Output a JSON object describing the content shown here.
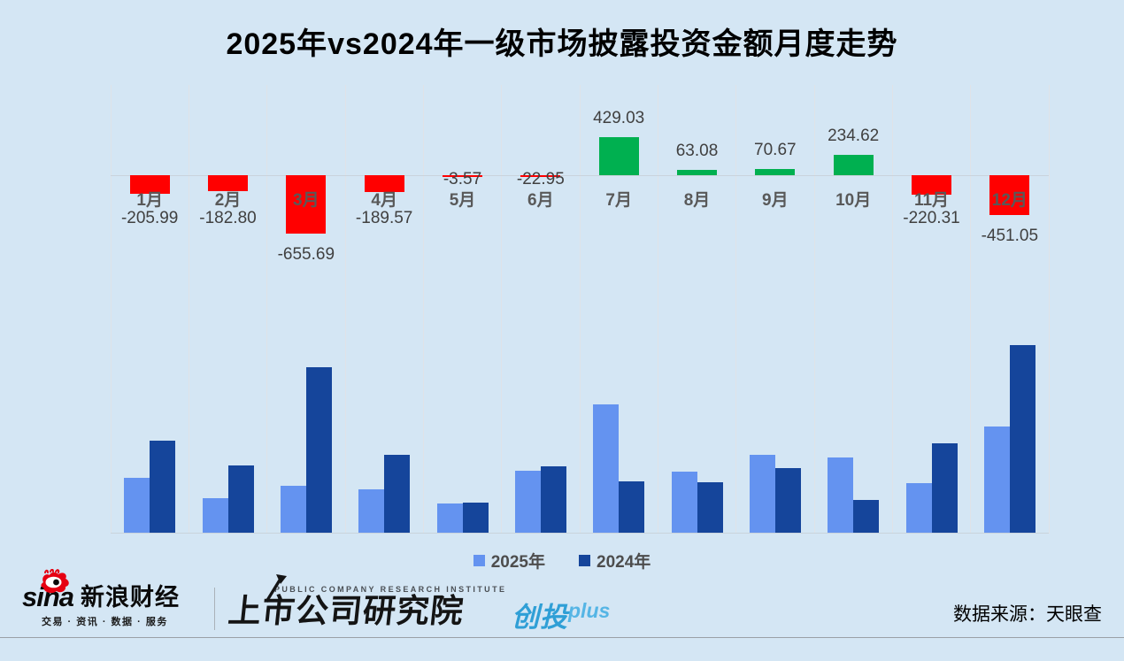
{
  "title": "2025年vs2024年一级市场披露投资金额月度走势",
  "chart_data": {
    "type": "bar",
    "title": "2025年vs2024年一级市场披露投资金额月度走势",
    "categories": [
      "1月",
      "2月",
      "3月",
      "4月",
      "5月",
      "6月",
      "7月",
      "8月",
      "9月",
      "10月",
      "11月",
      "12月"
    ],
    "diff_labels": [
      "-205.99",
      "-182.80",
      "-655.69",
      "-189.57",
      "-3.57",
      "-22.95",
      "429.03",
      "63.08",
      "70.67",
      "234.62",
      "-220.31",
      "-451.05"
    ],
    "series": [
      {
        "name": "2025年",
        "values": [
          304,
          191,
          260,
          240,
          162,
          343,
          712,
          340,
          430,
          417,
          274,
          588
        ]
      },
      {
        "name": "2024年",
        "values": [
          510,
          374,
          916,
          430,
          166,
          366,
          283,
          277,
          359,
          182,
          494,
          1039
        ]
      }
    ],
    "legend_position": "bottom",
    "grid": true
  },
  "legend": {
    "items": [
      {
        "label": "2025年",
        "color": "#6493f0"
      },
      {
        "label": "2024年",
        "color": "#15459b"
      }
    ]
  },
  "footer": {
    "sina_wordmark": "sina",
    "sina_brand": "新浪财经",
    "sina_tagline": "交易 · 资讯 · 数据 · 服务",
    "institute_en": "PUBLIC COMPANY RESEARCH INSTITUTE",
    "institute_cn": "上市公司研究院",
    "product_cn": "创投",
    "product_suffix": "plus",
    "source": "数据来源：天眼查"
  },
  "colors": {
    "background": "#d4e6f4",
    "positive": "#00b050",
    "negative": "#ff0000",
    "series_2025": "#6493f0",
    "series_2024": "#15459b",
    "month_label": "#595959",
    "value_label": "#404040",
    "gridline": "#dfe3e8",
    "axis_line": "#c9d3dc",
    "brand_blue": "#2f9fd6",
    "brand_blue_light": "#55b5e5",
    "sina_red": "#e60012"
  }
}
